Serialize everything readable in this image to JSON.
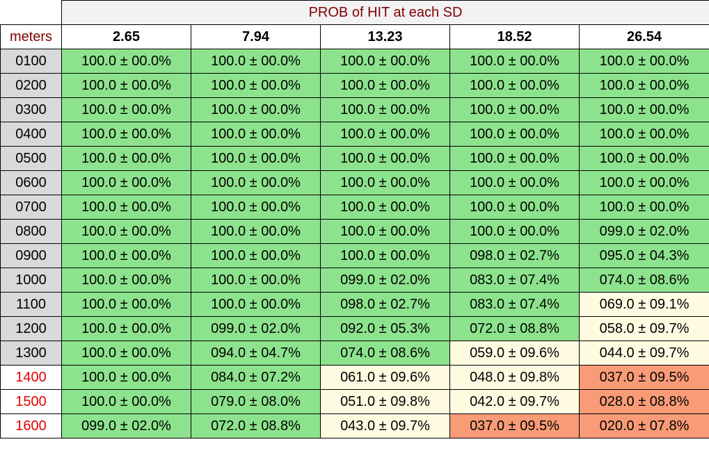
{
  "table": {
    "title": "PROB of HIT at each SD",
    "corner_label": "meters",
    "sd_headers": [
      "2.65",
      "7.94",
      "13.23",
      "18.52",
      "26.54"
    ],
    "colors": {
      "green": "#8de38d",
      "cream": "#fffbe1",
      "salmon": "#f99b77",
      "title_text": "#800000",
      "red_range_text": "#e60000",
      "range_bg": "#d9d9d9"
    },
    "rows": [
      {
        "range": "0100",
        "range_red": false,
        "cells": [
          {
            "text": "100.0 ± 00.0%",
            "color": "green"
          },
          {
            "text": "100.0 ± 00.0%",
            "color": "green"
          },
          {
            "text": "100.0 ± 00.0%",
            "color": "green"
          },
          {
            "text": "100.0 ± 00.0%",
            "color": "green"
          },
          {
            "text": "100.0 ± 00.0%",
            "color": "green"
          }
        ]
      },
      {
        "range": "0200",
        "range_red": false,
        "cells": [
          {
            "text": "100.0 ± 00.0%",
            "color": "green"
          },
          {
            "text": "100.0 ± 00.0%",
            "color": "green"
          },
          {
            "text": "100.0 ± 00.0%",
            "color": "green"
          },
          {
            "text": "100.0 ± 00.0%",
            "color": "green"
          },
          {
            "text": "100.0 ± 00.0%",
            "color": "green"
          }
        ]
      },
      {
        "range": "0300",
        "range_red": false,
        "cells": [
          {
            "text": "100.0 ± 00.0%",
            "color": "green"
          },
          {
            "text": "100.0 ± 00.0%",
            "color": "green"
          },
          {
            "text": "100.0 ± 00.0%",
            "color": "green"
          },
          {
            "text": "100.0 ± 00.0%",
            "color": "green"
          },
          {
            "text": "100.0 ± 00.0%",
            "color": "green"
          }
        ]
      },
      {
        "range": "0400",
        "range_red": false,
        "cells": [
          {
            "text": "100.0 ± 00.0%",
            "color": "green"
          },
          {
            "text": "100.0 ± 00.0%",
            "color": "green"
          },
          {
            "text": "100.0 ± 00.0%",
            "color": "green"
          },
          {
            "text": "100.0 ± 00.0%",
            "color": "green"
          },
          {
            "text": "100.0 ± 00.0%",
            "color": "green"
          }
        ]
      },
      {
        "range": "0500",
        "range_red": false,
        "cells": [
          {
            "text": "100.0 ± 00.0%",
            "color": "green"
          },
          {
            "text": "100.0 ± 00.0%",
            "color": "green"
          },
          {
            "text": "100.0 ± 00.0%",
            "color": "green"
          },
          {
            "text": "100.0 ± 00.0%",
            "color": "green"
          },
          {
            "text": "100.0 ± 00.0%",
            "color": "green"
          }
        ]
      },
      {
        "range": "0600",
        "range_red": false,
        "cells": [
          {
            "text": "100.0 ± 00.0%",
            "color": "green"
          },
          {
            "text": "100.0 ± 00.0%",
            "color": "green"
          },
          {
            "text": "100.0 ± 00.0%",
            "color": "green"
          },
          {
            "text": "100.0 ± 00.0%",
            "color": "green"
          },
          {
            "text": "100.0 ± 00.0%",
            "color": "green"
          }
        ]
      },
      {
        "range": "0700",
        "range_red": false,
        "cells": [
          {
            "text": "100.0 ± 00.0%",
            "color": "green"
          },
          {
            "text": "100.0 ± 00.0%",
            "color": "green"
          },
          {
            "text": "100.0 ± 00.0%",
            "color": "green"
          },
          {
            "text": "100.0 ± 00.0%",
            "color": "green"
          },
          {
            "text": "100.0 ± 00.0%",
            "color": "green"
          }
        ]
      },
      {
        "range": "0800",
        "range_red": false,
        "cells": [
          {
            "text": "100.0 ± 00.0%",
            "color": "green"
          },
          {
            "text": "100.0 ± 00.0%",
            "color": "green"
          },
          {
            "text": "100.0 ± 00.0%",
            "color": "green"
          },
          {
            "text": "100.0 ± 00.0%",
            "color": "green"
          },
          {
            "text": "099.0 ± 02.0%",
            "color": "green"
          }
        ]
      },
      {
        "range": "0900",
        "range_red": false,
        "cells": [
          {
            "text": "100.0 ± 00.0%",
            "color": "green"
          },
          {
            "text": "100.0 ± 00.0%",
            "color": "green"
          },
          {
            "text": "100.0 ± 00.0%",
            "color": "green"
          },
          {
            "text": "098.0 ± 02.7%",
            "color": "green"
          },
          {
            "text": "095.0 ± 04.3%",
            "color": "green"
          }
        ]
      },
      {
        "range": "1000",
        "range_red": false,
        "cells": [
          {
            "text": "100.0 ± 00.0%",
            "color": "green"
          },
          {
            "text": "100.0 ± 00.0%",
            "color": "green"
          },
          {
            "text": "099.0 ± 02.0%",
            "color": "green"
          },
          {
            "text": "083.0 ± 07.4%",
            "color": "green"
          },
          {
            "text": "074.0 ± 08.6%",
            "color": "green"
          }
        ]
      },
      {
        "range": "1100",
        "range_red": false,
        "cells": [
          {
            "text": "100.0 ± 00.0%",
            "color": "green"
          },
          {
            "text": "100.0 ± 00.0%",
            "color": "green"
          },
          {
            "text": "098.0 ± 02.7%",
            "color": "green"
          },
          {
            "text": "083.0 ± 07.4%",
            "color": "green"
          },
          {
            "text": "069.0 ± 09.1%",
            "color": "cream"
          }
        ]
      },
      {
        "range": "1200",
        "range_red": false,
        "cells": [
          {
            "text": "100.0 ± 00.0%",
            "color": "green"
          },
          {
            "text": "099.0 ± 02.0%",
            "color": "green"
          },
          {
            "text": "092.0 ± 05.3%",
            "color": "green"
          },
          {
            "text": "072.0 ± 08.8%",
            "color": "green"
          },
          {
            "text": "058.0 ± 09.7%",
            "color": "cream"
          }
        ]
      },
      {
        "range": "1300",
        "range_red": false,
        "cells": [
          {
            "text": "100.0 ± 00.0%",
            "color": "green"
          },
          {
            "text": "094.0 ± 04.7%",
            "color": "green"
          },
          {
            "text": "074.0 ± 08.6%",
            "color": "green"
          },
          {
            "text": "059.0 ± 09.6%",
            "color": "cream"
          },
          {
            "text": "044.0 ± 09.7%",
            "color": "cream"
          }
        ]
      },
      {
        "range": "1400",
        "range_red": true,
        "cells": [
          {
            "text": "100.0 ± 00.0%",
            "color": "green"
          },
          {
            "text": "084.0 ± 07.2%",
            "color": "green"
          },
          {
            "text": "061.0 ± 09.6%",
            "color": "cream"
          },
          {
            "text": "048.0 ± 09.8%",
            "color": "cream"
          },
          {
            "text": "037.0 ± 09.5%",
            "color": "salmon"
          }
        ]
      },
      {
        "range": "1500",
        "range_red": true,
        "cells": [
          {
            "text": "100.0 ± 00.0%",
            "color": "green"
          },
          {
            "text": "079.0 ± 08.0%",
            "color": "green"
          },
          {
            "text": "051.0 ± 09.8%",
            "color": "cream"
          },
          {
            "text": "042.0 ± 09.7%",
            "color": "cream"
          },
          {
            "text": "028.0 ± 08.8%",
            "color": "salmon"
          }
        ]
      },
      {
        "range": "1600",
        "range_red": true,
        "cells": [
          {
            "text": "099.0 ± 02.0%",
            "color": "green"
          },
          {
            "text": "072.0 ± 08.8%",
            "color": "green"
          },
          {
            "text": "043.0 ± 09.7%",
            "color": "cream"
          },
          {
            "text": "037.0 ± 09.5%",
            "color": "salmon"
          },
          {
            "text": "020.0 ± 07.8%",
            "color": "salmon"
          }
        ]
      }
    ]
  }
}
